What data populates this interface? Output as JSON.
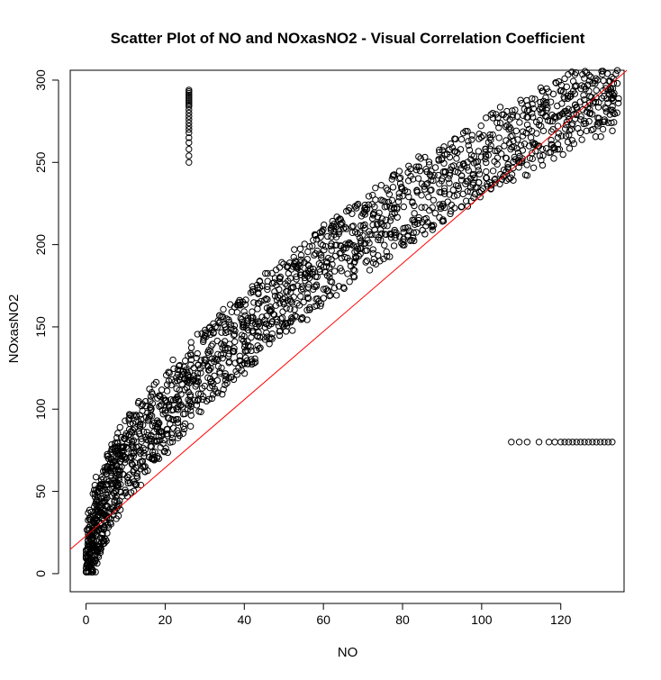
{
  "chart_data": {
    "type": "scatter",
    "title": "Scatter Plot of NO and NOxasNO2 - Visual Correlation Coefficient",
    "xlabel": "NO",
    "ylabel": "NOxasNO2",
    "xlim": [
      -4,
      136
    ],
    "ylim": [
      -11,
      306
    ],
    "x_ticks": [
      0,
      20,
      40,
      60,
      80,
      100,
      120
    ],
    "y_ticks": [
      0,
      50,
      100,
      150,
      200,
      250,
      300
    ],
    "grid": false,
    "point_style": "open circle",
    "point_color": "#000000",
    "series": [
      {
        "kind": "points",
        "x": [
          0.3,
          0.8,
          1.2,
          1.5,
          2.0,
          2.6,
          3.0,
          3.5,
          4.2,
          5.0,
          5.8,
          6.5,
          7.4,
          8.3,
          9.0,
          10.2,
          11.5,
          12.7,
          14.0,
          15.4,
          16.8,
          18.0,
          19.5,
          21.0,
          22.6,
          24.0,
          25.5,
          27.3,
          29.0,
          30.8,
          32.4,
          34.1,
          35.8,
          37.6,
          39.4,
          41.0,
          42.8,
          44.5,
          46.3,
          48.0,
          49.8,
          51.7,
          53.5,
          55.4,
          57.2,
          59.0,
          61.0,
          63.0,
          65.0,
          67.0,
          69.2,
          71.5,
          73.6,
          75.8,
          78.0,
          80.3,
          82.5,
          84.8,
          87.0,
          89.3,
          91.6,
          94.0,
          96.3,
          98.6,
          101.0,
          103.4,
          105.7,
          108.0,
          110.4,
          112.7,
          115.0,
          117.3,
          119.6,
          121.8,
          124.0,
          126.2,
          128.3,
          130.4,
          132.3,
          133.5
        ],
        "y": [
          5,
          12,
          18,
          22,
          28,
          32,
          35,
          40,
          43,
          48,
          51,
          55,
          58,
          62,
          65,
          70,
          73,
          77,
          82,
          86,
          90,
          93,
          97,
          102,
          106,
          109,
          113,
          118,
          122,
          126,
          129,
          133,
          137,
          141,
          145,
          148,
          152,
          156,
          160,
          163,
          167,
          171,
          175,
          178,
          182,
          185,
          189,
          193,
          197,
          200,
          204,
          208,
          212,
          215,
          219,
          223,
          226,
          230,
          233,
          237,
          240,
          244,
          247,
          250,
          254,
          257,
          260,
          263,
          266,
          269,
          272,
          275,
          278,
          280,
          283,
          285,
          287,
          289,
          291,
          292
        ],
        "spread": [
          10,
          14,
          18,
          20,
          22,
          24,
          24,
          24,
          24,
          24,
          24,
          24,
          24,
          24,
          24,
          24,
          24,
          24,
          24,
          24,
          24,
          24,
          24,
          24,
          24,
          24,
          24,
          24,
          24,
          24,
          24,
          24,
          24,
          24,
          24,
          24,
          24,
          24,
          24,
          24,
          24,
          24,
          24,
          24,
          24,
          24,
          24,
          24,
          24,
          24,
          24,
          24,
          24,
          24,
          24,
          24,
          24,
          24,
          24,
          24,
          24,
          24,
          24,
          24,
          24,
          24,
          24,
          24,
          24,
          24,
          24,
          24,
          24,
          24,
          24,
          24,
          24,
          24,
          22,
          20
        ]
      },
      {
        "kind": "points",
        "x": [
          26,
          26,
          26,
          26,
          26,
          26,
          26,
          26,
          26,
          26,
          26,
          26,
          26,
          26,
          26,
          26,
          26,
          26,
          26,
          26,
          26,
          26,
          26,
          26
        ],
        "y": [
          250,
          254,
          258,
          262,
          265,
          268,
          270,
          272,
          274,
          276,
          278,
          280,
          282,
          284,
          285,
          286,
          287,
          288,
          289,
          290,
          291,
          292,
          293,
          294
        ]
      },
      {
        "kind": "points",
        "x": [
          107.5,
          109.5,
          111.5,
          114.5,
          117.0,
          118.5,
          120.0,
          121.0,
          122.0,
          123.0,
          124.0,
          125.0,
          126.0,
          127.0,
          128.0,
          129.0,
          130.0,
          131.0,
          132.0,
          133.0
        ],
        "y": [
          80,
          80,
          80,
          80,
          80,
          80,
          80,
          80,
          80,
          80,
          80,
          80,
          80,
          80,
          80,
          80,
          80,
          80,
          80,
          80
        ]
      }
    ],
    "fit_line": {
      "kind": "line",
      "color": "#ff0000",
      "intercept": 23,
      "slope": 2.07
    }
  }
}
